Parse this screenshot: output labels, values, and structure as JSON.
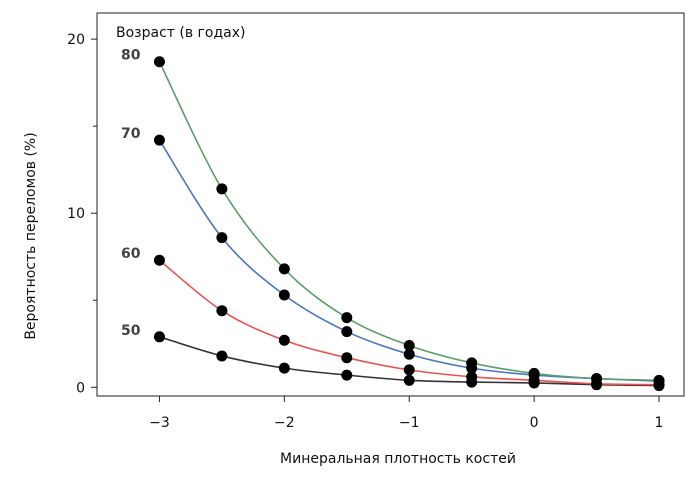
{
  "chart_data": {
    "type": "line",
    "title": "",
    "xlabel": "Минеральная плотность костей",
    "ylabel": "Вероятность переломов (%)",
    "legend_title": "Возраст (в годах)",
    "xlim": [
      -3.5,
      1.2
    ],
    "ylim": [
      -0.5,
      21.5
    ],
    "x_ticks": [
      -3,
      -2,
      -1,
      0,
      1
    ],
    "x_tick_labels": [
      "−3",
      "−2",
      "−1",
      "0",
      "1"
    ],
    "y_ticks": [
      0,
      10,
      20
    ],
    "y_tick_labels": [
      "0",
      "10",
      "20"
    ],
    "y_minor_ticks": [
      5,
      15
    ],
    "x": [
      -3,
      -2.5,
      -2,
      -1.5,
      -1,
      -0.5,
      0,
      0.5,
      1
    ],
    "series": [
      {
        "name": "50",
        "color": "#333333",
        "values": [
          2.9,
          1.8,
          1.1,
          0.7,
          0.4,
          0.3,
          0.25,
          0.15,
          0.1
        ]
      },
      {
        "name": "60",
        "color": "#e8524f",
        "values": [
          7.3,
          4.4,
          2.7,
          1.7,
          1.0,
          0.6,
          0.4,
          0.2,
          0.15
        ]
      },
      {
        "name": "70",
        "color": "#4a74c4",
        "values": [
          14.2,
          8.6,
          5.3,
          3.2,
          1.9,
          1.1,
          0.7,
          0.5,
          0.35
        ]
      },
      {
        "name": "80",
        "color": "#5a9e6e",
        "values": [
          18.7,
          11.4,
          6.8,
          4.0,
          2.4,
          1.4,
          0.8,
          0.5,
          0.4
        ]
      }
    ]
  }
}
